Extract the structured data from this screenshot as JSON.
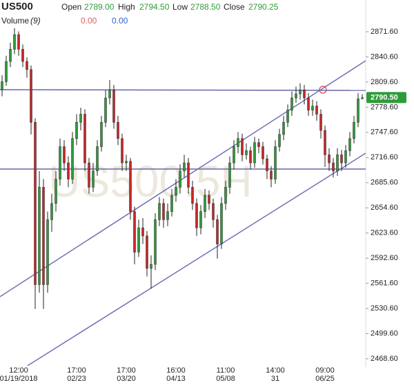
{
  "chart_data": {
    "type": "candlestick",
    "title": "US500",
    "header": {
      "open_label": "Open",
      "open": {
        "value": 2789,
        "label": "2789.00"
      },
      "high_label": "High",
      "high": {
        "value": 2794.5,
        "label": "2794.50"
      },
      "low_label": "Low",
      "low": {
        "value": 2788.5,
        "label": "2788.50"
      },
      "close_label": "Close",
      "close": {
        "value": 2790.25,
        "label": "2790.25"
      }
    },
    "volume": {
      "label": "Volume",
      "period": "(9)",
      "value_a": {
        "value": 0,
        "label": "0.00"
      },
      "value_b": {
        "value": 0,
        "label": "0.00"
      }
    },
    "watermark": "US500.5H",
    "last_price": {
      "value": 2790.5,
      "label": "2790.50"
    },
    "up_color": "#2e9b3a",
    "down_color": "#c62828",
    "grid": false,
    "ylim": [
      2458.4,
      2910.7
    ],
    "yticks": [
      {
        "value": 2871.6,
        "label": "2871.60"
      },
      {
        "value": 2840.6,
        "label": "2840.60"
      },
      {
        "value": 2809.6,
        "label": "2809.60"
      },
      {
        "value": 2778.6,
        "label": "2778.60"
      },
      {
        "value": 2747.6,
        "label": "2747.60"
      },
      {
        "value": 2716.6,
        "label": "2716.60"
      },
      {
        "value": 2685.6,
        "label": "2685.60"
      },
      {
        "value": 2654.6,
        "label": "2654.60"
      },
      {
        "value": 2623.6,
        "label": "2623.60"
      },
      {
        "value": 2592.6,
        "label": "2592.60"
      },
      {
        "value": 2561.6,
        "label": "2561.60"
      },
      {
        "value": 2530.6,
        "label": "2530.60"
      },
      {
        "value": 2499.6,
        "label": "2499.60"
      },
      {
        "value": 2468.6,
        "label": "2468.60"
      }
    ],
    "categories": [
      null,
      null,
      null,
      null,
      {
        "time": "12:00",
        "date": "01/19/2018"
      },
      null,
      null,
      null,
      null,
      null,
      null,
      null,
      null,
      null,
      null,
      null,
      null,
      null,
      {
        "time": "17:00",
        "date": "02/23"
      },
      null,
      null,
      null,
      null,
      null,
      null,
      null,
      null,
      null,
      null,
      null,
      {
        "time": "17:00",
        "date": "03/20"
      },
      null,
      null,
      null,
      null,
      null,
      null,
      null,
      null,
      null,
      null,
      null,
      {
        "time": "16:00",
        "date": "04/13"
      },
      null,
      null,
      null,
      null,
      null,
      null,
      null,
      null,
      null,
      null,
      null,
      {
        "time": "11:00",
        "date": "05/08"
      },
      null,
      null,
      null,
      null,
      null,
      null,
      null,
      null,
      null,
      null,
      null,
      {
        "time": "14:00",
        "date": "31"
      },
      null,
      null,
      null,
      null,
      null,
      null,
      null,
      null,
      null,
      null,
      null,
      {
        "time": "09:00",
        "date": "06/25"
      },
      null,
      null,
      null,
      null,
      null,
      null,
      null,
      null,
      null
    ],
    "open": [
      2800,
      2810,
      2835,
      2850,
      2868,
      2850,
      2835,
      2825,
      2760,
      2560,
      2680,
      2560,
      2640,
      2660,
      2690,
      2730,
      2710,
      2690,
      2740,
      2760,
      2770,
      2710,
      2680,
      2700,
      2730,
      2760,
      2790,
      2800,
      2760,
      2740,
      2710,
      2712,
      2650,
      2600,
      2630,
      2620,
      2580,
      2585,
      2640,
      2660,
      2640,
      2650,
      2670,
      2680,
      2700,
      2710,
      2680,
      2660,
      2630,
      2650,
      2670,
      2660,
      2640,
      2610,
      2660,
      2680,
      2710,
      2730,
      2740,
      2720,
      2725,
      2710,
      2735,
      2730,
      2715,
      2700,
      2690,
      2730,
      2745,
      2760,
      2775,
      2790,
      2795,
      2800,
      2790,
      2775,
      2780,
      2770,
      2750,
      2720,
      2710,
      2700,
      2720,
      2710,
      2725,
      2740,
      2760,
      2789
    ],
    "high": [
      2818,
      2842,
      2858,
      2876,
      2872,
      2856,
      2840,
      2830,
      2765,
      2700,
      2690,
      2650,
      2672,
      2700,
      2740,
      2738,
      2718,
      2748,
      2770,
      2778,
      2776,
      2716,
      2710,
      2738,
      2768,
      2800,
      2812,
      2806,
      2768,
      2746,
      2720,
      2716,
      2656,
      2640,
      2642,
      2626,
      2596,
      2648,
      2668,
      2666,
      2660,
      2678,
      2690,
      2708,
      2720,
      2716,
      2688,
      2666,
      2658,
      2678,
      2676,
      2666,
      2646,
      2668,
      2688,
      2718,
      2738,
      2748,
      2746,
      2734,
      2730,
      2742,
      2740,
      2736,
      2720,
      2706,
      2738,
      2752,
      2768,
      2782,
      2798,
      2804,
      2808,
      2806,
      2796,
      2788,
      2786,
      2776,
      2756,
      2728,
      2716,
      2728,
      2726,
      2732,
      2748,
      2768,
      2796,
      2794.5
    ],
    "low": [
      2792,
      2805,
      2828,
      2844,
      2842,
      2828,
      2815,
      2745,
      2530,
      2550,
      2530,
      2550,
      2625,
      2650,
      2682,
      2700,
      2680,
      2684,
      2732,
      2750,
      2700,
      2672,
      2674,
      2694,
      2724,
      2754,
      2782,
      2752,
      2732,
      2700,
      2700,
      2640,
      2585,
      2594,
      2610,
      2570,
      2555,
      2578,
      2632,
      2630,
      2632,
      2644,
      2662,
      2672,
      2692,
      2672,
      2652,
      2620,
      2622,
      2642,
      2652,
      2630,
      2592,
      2604,
      2652,
      2672,
      2702,
      2722,
      2712,
      2714,
      2702,
      2704,
      2722,
      2708,
      2690,
      2680,
      2684,
      2724,
      2738,
      2754,
      2768,
      2784,
      2788,
      2782,
      2768,
      2768,
      2762,
      2740,
      2705,
      2700,
      2692,
      2694,
      2700,
      2704,
      2718,
      2734,
      2754,
      2788.5
    ],
    "close": [
      2810,
      2835,
      2850,
      2868,
      2850,
      2835,
      2825,
      2760,
      2560,
      2680,
      2560,
      2640,
      2660,
      2690,
      2730,
      2710,
      2690,
      2740,
      2760,
      2770,
      2710,
      2680,
      2700,
      2730,
      2760,
      2790,
      2800,
      2760,
      2740,
      2710,
      2712,
      2650,
      2600,
      2630,
      2620,
      2580,
      2585,
      2640,
      2660,
      2640,
      2650,
      2670,
      2680,
      2700,
      2710,
      2680,
      2660,
      2630,
      2650,
      2670,
      2660,
      2640,
      2610,
      2660,
      2680,
      2710,
      2730,
      2740,
      2720,
      2725,
      2710,
      2735,
      2730,
      2715,
      2700,
      2690,
      2730,
      2745,
      2760,
      2775,
      2790,
      2795,
      2800,
      2790,
      2775,
      2780,
      2770,
      2750,
      2720,
      2710,
      2700,
      2720,
      2710,
      2725,
      2740,
      2760,
      2789,
      2790.25
    ]
  }
}
